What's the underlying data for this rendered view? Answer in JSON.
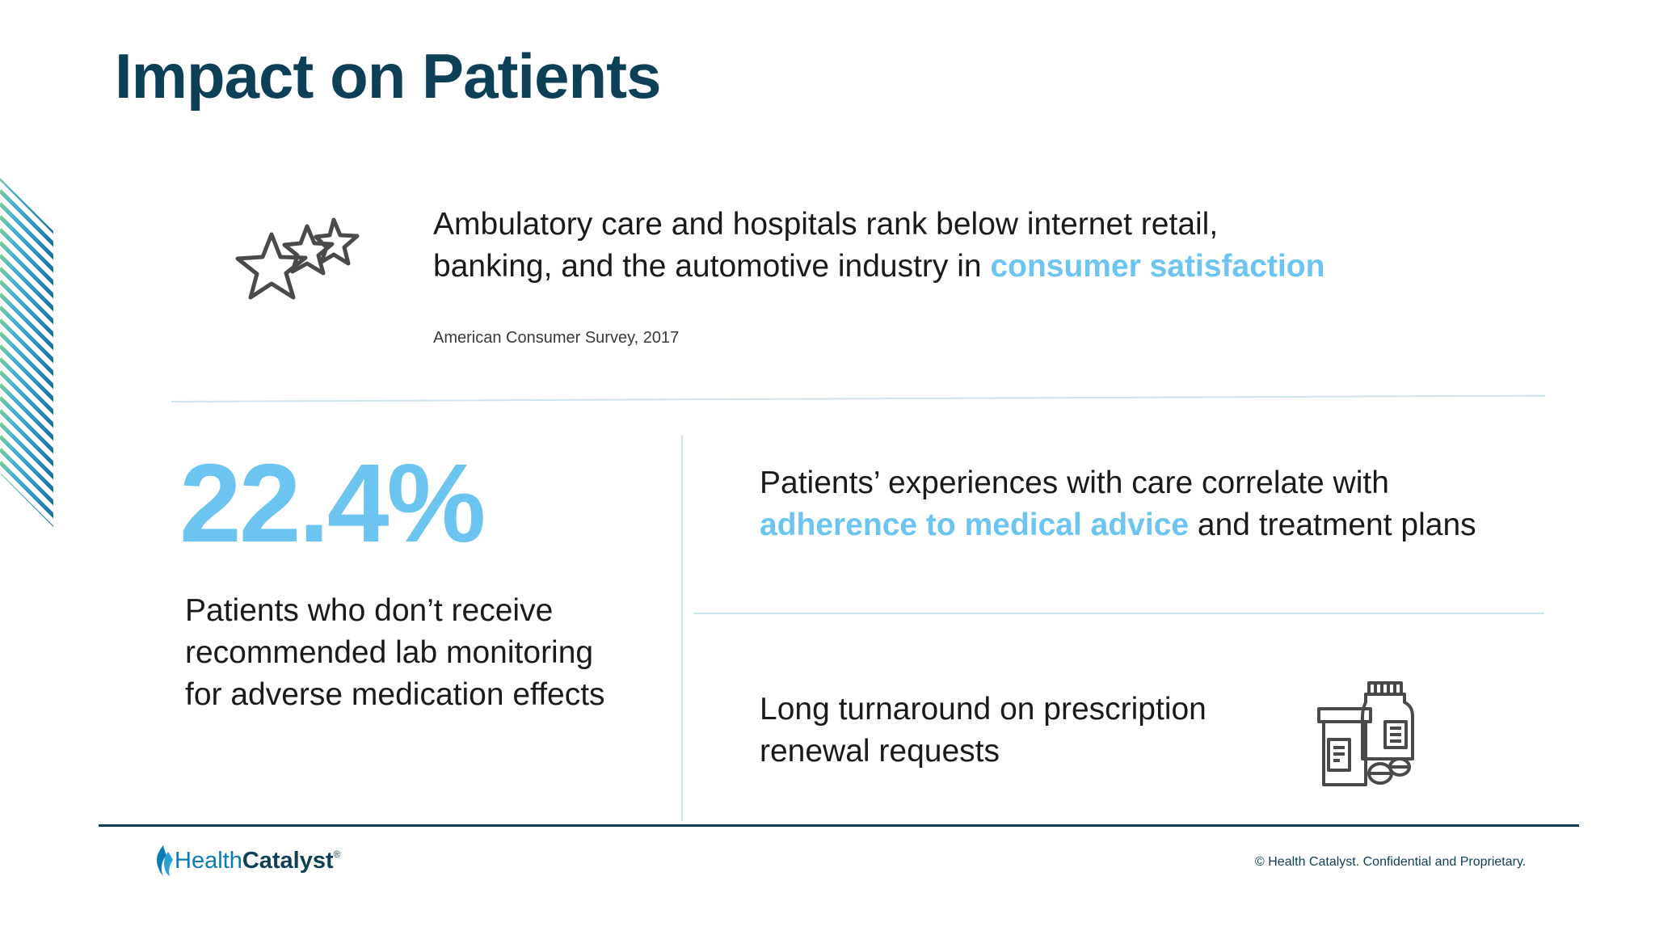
{
  "slide": {
    "title": "Impact on Patients"
  },
  "satisfaction": {
    "text_line1": "Ambulatory care and hospitals rank below internet retail,",
    "text_line2_prefix": "banking, and the automotive industry in ",
    "highlight": "consumer satisfaction",
    "source": "American Consumer Survey, 2017"
  },
  "lab_monitoring": {
    "stat": "22.4%",
    "line1": "Patients who don’t receive",
    "line2": "recommended lab monitoring",
    "line3": "for adverse medication effects"
  },
  "adherence": {
    "line1": "Patients’ experiences with care correlate with",
    "highlight": "adherence to medical advice",
    "line2_suffix": " and treatment plans"
  },
  "prescription": {
    "line1": "Long turnaround on prescription",
    "line2": "renewal requests"
  },
  "footer": {
    "logo_health": "Health",
    "logo_catalyst": "Catalyst",
    "logo_tm": "®",
    "copyright": "© Health Catalyst. Confidential and Proprietary."
  },
  "colors": {
    "title": "#0d3f56",
    "accent": "#6cc4f0",
    "divider": "#cde3ee",
    "footer_line": "#0d3f56"
  },
  "icons": {
    "stars": "stars-icon",
    "pills": "medication-bottles-icon",
    "logo_flame": "health-catalyst-flame-icon"
  }
}
